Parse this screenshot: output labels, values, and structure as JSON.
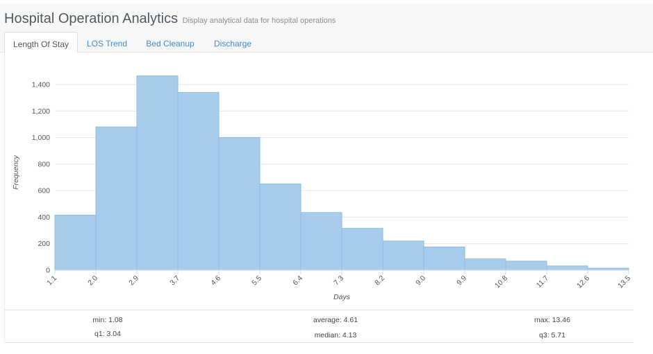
{
  "header": {
    "title": "Hospital Operation Analytics",
    "subtitle": "Display analytical data for hospital operations"
  },
  "tabs": [
    {
      "label": "Length Of Stay",
      "active": true
    },
    {
      "label": "LOS Trend",
      "active": false
    },
    {
      "label": "Bed Cleanup",
      "active": false
    },
    {
      "label": "Discharge",
      "active": false
    }
  ],
  "chart_data": {
    "type": "bar",
    "title": "",
    "xlabel": "Days",
    "ylabel": "Frequency",
    "ylim": [
      0,
      1400
    ],
    "yticks": [
      0,
      200,
      400,
      600,
      800,
      1000,
      1200,
      1400
    ],
    "ytick_labels": [
      "0",
      "200",
      "400",
      "600",
      "800",
      "1,000",
      "1,200",
      "1,400"
    ],
    "bin_edges": [
      "1.1",
      "2.0",
      "2.9",
      "3.7",
      "4.6",
      "5.5",
      "6.4",
      "7.3",
      "8.2",
      "9.0",
      "9.9",
      "10.8",
      "11.7",
      "12.6",
      "13.5"
    ],
    "values": [
      415,
      1080,
      1465,
      1340,
      1000,
      650,
      435,
      315,
      220,
      175,
      85,
      68,
      32,
      15
    ],
    "bar_color": "#a8cdec",
    "bar_edge": "#8dbde5",
    "grid": true
  },
  "stats": {
    "min": {
      "label": "min",
      "value": "1.08"
    },
    "average": {
      "label": "average",
      "value": "4.61"
    },
    "max": {
      "label": "max",
      "value": "13.46"
    },
    "q1": {
      "label": "q1",
      "value": "3.04"
    },
    "median": {
      "label": "median",
      "value": "4.13"
    },
    "q3": {
      "label": "q3",
      "value": "5.71"
    }
  }
}
